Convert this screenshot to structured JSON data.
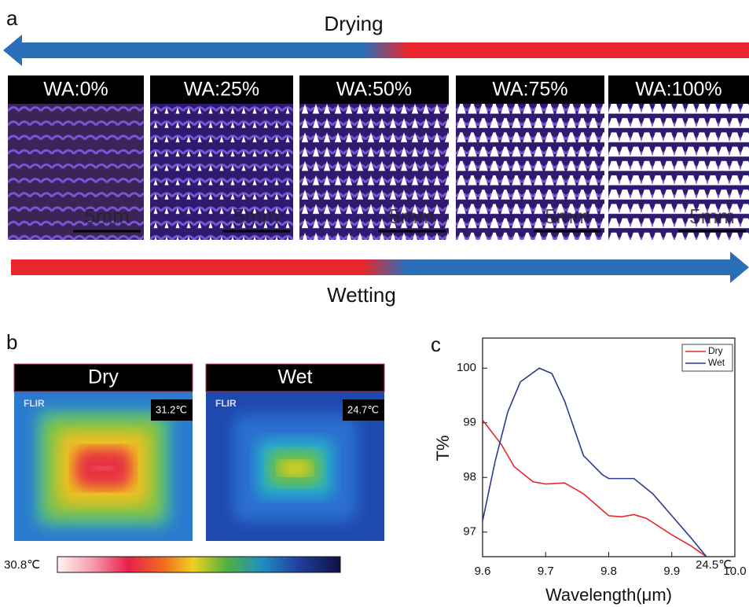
{
  "figure": {
    "panel_a": {
      "label": "a",
      "top_arrow": "Drying",
      "bottom_arrow": "Wetting",
      "images": [
        {
          "label": "WA:0%",
          "scale_bar": "5mm"
        },
        {
          "label": "WA:25%",
          "scale_bar": "5mm"
        },
        {
          "label": "WA:50%",
          "scale_bar": "5mm"
        },
        {
          "label": "WA:75%",
          "scale_bar": "5mm"
        },
        {
          "label": "WA:100%",
          "scale_bar": "5mm"
        }
      ]
    },
    "panel_b": {
      "label": "b",
      "images": [
        {
          "label": "Dry",
          "temperature": "31.2℃",
          "logo": "FLIR"
        },
        {
          "label": "Wet",
          "temperature": "24.7℃",
          "logo": "FLIR"
        }
      ],
      "colorbar": {
        "max_label": "30.8℃",
        "min_label": "24.5℃"
      }
    },
    "panel_c_label": "c"
  },
  "chart_data": {
    "type": "line",
    "x_label": "Wavelength(μm)",
    "y_label": "T%",
    "xlim": [
      9.6,
      10.0
    ],
    "xticks": [
      9.6,
      9.7,
      9.8,
      9.9,
      {
        "value": 10.0,
        "label": "10.0"
      }
    ],
    "ylim": [
      96.55,
      100.55
    ],
    "yticks": [
      97,
      98,
      99,
      100
    ],
    "legend": "top-right",
    "series": [
      {
        "name": "Dry",
        "color": "#e8262b",
        "x": [
          9.6,
          9.63,
          9.65,
          9.68,
          9.7,
          9.73,
          9.76,
          9.8,
          9.82,
          9.84,
          9.86,
          9.9,
          9.93,
          9.955
        ],
        "values": [
          99.05,
          98.6,
          98.2,
          97.92,
          97.88,
          97.9,
          97.7,
          97.3,
          97.28,
          97.32,
          97.25,
          96.95,
          96.75,
          96.55
        ]
      },
      {
        "name": "Wet",
        "color": "#2b3a8f",
        "x": [
          9.6,
          9.62,
          9.64,
          9.66,
          9.69,
          9.71,
          9.73,
          9.76,
          9.79,
          9.8,
          9.84,
          9.87,
          9.9,
          9.93,
          9.955
        ],
        "values": [
          97.2,
          98.3,
          99.2,
          99.75,
          100.0,
          99.9,
          99.4,
          98.4,
          98.05,
          97.98,
          97.98,
          97.7,
          97.3,
          96.9,
          96.55
        ]
      }
    ]
  }
}
